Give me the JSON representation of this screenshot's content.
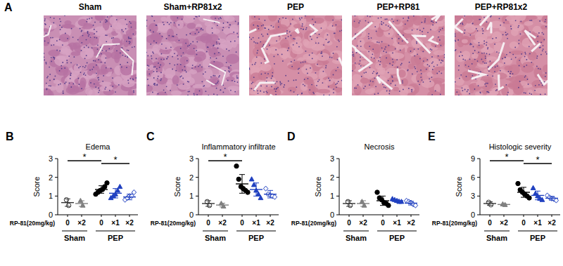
{
  "figure_a": {
    "panel": "A",
    "titles": [
      "Sham",
      "Sham+RP81x2",
      "PEP",
      "PEP+RP81",
      "PEP+RP81x2"
    ]
  },
  "chart_data": [
    {
      "type": "scatter",
      "panel": "B",
      "title": "Edema",
      "y_label": "Score",
      "dose_label": "RP-81(20mg/kg)",
      "categories": [
        "0",
        "×2",
        "0",
        "×1",
        "×2"
      ],
      "group_labels": [
        {
          "label": "Sham",
          "from": 0,
          "to": 1
        },
        {
          "label": "PEP",
          "from": 2,
          "to": 4
        }
      ],
      "ylim": [
        0,
        3
      ],
      "yticks": [
        0,
        1,
        2,
        3
      ],
      "groups": [
        {
          "color": "#333333",
          "marker": "circle-open",
          "values": [
            0.8,
            0.5
          ],
          "mean": 0.65,
          "sd": 0.2
        },
        {
          "color": "#808080",
          "marker": "triangle",
          "values": [
            0.75,
            0.5
          ],
          "mean": 0.6,
          "sd": 0.15
        },
        {
          "color": "#000000",
          "marker": "circle",
          "values": [
            1.1,
            1.2,
            1.3,
            1.35,
            1.5,
            1.7
          ],
          "mean": 1.35,
          "sd": 0.2
        },
        {
          "color": "#2040c0",
          "marker": "triangle",
          "values": [
            0.9,
            1.0,
            1.1,
            1.3,
            1.5
          ],
          "mean": 1.15,
          "sd": 0.25
        },
        {
          "color": "#2040c0",
          "marker": "diamond-open",
          "values": [
            0.8,
            0.9,
            1.0,
            1.0,
            1.2
          ],
          "mean": 0.95,
          "sd": 0.15
        }
      ],
      "significance": [
        {
          "from": 0,
          "to": 2,
          "label": "*"
        },
        {
          "from": 2,
          "to": 4,
          "label": "*"
        }
      ]
    },
    {
      "type": "scatter",
      "panel": "C",
      "title": "Inflammatory infiltrate",
      "y_label": "Score",
      "dose_label": "RP-81(20mg/kg)",
      "categories": [
        "0",
        "×2",
        "0",
        "×1",
        "×2"
      ],
      "group_labels": [
        {
          "label": "Sham",
          "from": 0,
          "to": 1
        },
        {
          "label": "PEP",
          "from": 2,
          "to": 4
        }
      ],
      "ylim": [
        0,
        3
      ],
      "yticks": [
        0,
        1,
        2,
        3
      ],
      "groups": [
        {
          "color": "#333333",
          "marker": "circle-open",
          "values": [
            0.7,
            0.5
          ],
          "mean": 0.6,
          "sd": 0.15
        },
        {
          "color": "#808080",
          "marker": "triangle",
          "values": [
            0.6,
            0.45
          ],
          "mean": 0.52,
          "sd": 0.1
        },
        {
          "color": "#000000",
          "marker": "circle",
          "values": [
            2.6,
            1.9,
            1.5,
            1.4,
            1.3,
            1.2
          ],
          "mean": 1.65,
          "sd": 0.5
        },
        {
          "color": "#2040c0",
          "marker": "triangle",
          "values": [
            1.9,
            1.6,
            1.3,
            1.1,
            0.9
          ],
          "mean": 1.35,
          "sd": 0.35
        },
        {
          "color": "#2040c0",
          "marker": "diamond-open",
          "values": [
            1.4,
            1.1,
            1.05,
            1.0,
            0.95
          ],
          "mean": 1.1,
          "sd": 0.2
        }
      ],
      "significance": [
        {
          "from": 0,
          "to": 2,
          "label": "*"
        }
      ]
    },
    {
      "type": "scatter",
      "panel": "D",
      "title": "Necrosis",
      "y_label": "Score",
      "dose_label": "RP-81(20mg/kg)",
      "categories": [
        "0",
        "×2",
        "0",
        "×1",
        "×2"
      ],
      "group_labels": [
        {
          "label": "Sham",
          "from": 0,
          "to": 1
        },
        {
          "label": "PEP",
          "from": 2,
          "to": 4
        }
      ],
      "ylim": [
        0,
        3
      ],
      "yticks": [
        0,
        1,
        2,
        3
      ],
      "groups": [
        {
          "color": "#333333",
          "marker": "circle-open",
          "values": [
            0.7,
            0.5
          ],
          "mean": 0.6,
          "sd": 0.15
        },
        {
          "color": "#808080",
          "marker": "triangle",
          "values": [
            0.7,
            0.5
          ],
          "mean": 0.6,
          "sd": 0.15
        },
        {
          "color": "#000000",
          "marker": "circle",
          "values": [
            1.2,
            0.9,
            0.8,
            0.65,
            0.6,
            0.5
          ],
          "mean": 0.75,
          "sd": 0.25
        },
        {
          "color": "#2040c0",
          "marker": "triangle",
          "values": [
            0.85,
            0.8,
            0.75,
            0.7,
            0.7
          ],
          "mean": 0.75,
          "sd": 0.07
        },
        {
          "color": "#2040c0",
          "marker": "diamond-open",
          "values": [
            0.75,
            0.7,
            0.65,
            0.55,
            0.5
          ],
          "mean": 0.62,
          "sd": 0.1
        }
      ],
      "significance": []
    },
    {
      "type": "scatter",
      "panel": "E",
      "title": "Histologic severity",
      "y_label": "Score",
      "dose_label": "RP-81(20mg/kg)",
      "categories": [
        "0",
        "×2",
        "0",
        "×1",
        "×2"
      ],
      "group_labels": [
        {
          "label": "Sham",
          "from": 0,
          "to": 1
        },
        {
          "label": "PEP",
          "from": 2,
          "to": 4
        }
      ],
      "ylim": [
        0,
        9
      ],
      "yticks": [
        0,
        3,
        6,
        9
      ],
      "groups": [
        {
          "color": "#333333",
          "marker": "circle-open",
          "values": [
            2.0,
            1.6
          ],
          "mean": 1.8,
          "sd": 0.3
        },
        {
          "color": "#808080",
          "marker": "triangle",
          "values": [
            1.7,
            1.6
          ],
          "mean": 1.65,
          "sd": 0.1
        },
        {
          "color": "#000000",
          "marker": "circle",
          "values": [
            5.0,
            4.0,
            3.6,
            3.3,
            3.0,
            2.7
          ],
          "mean": 3.6,
          "sd": 0.8
        },
        {
          "color": "#2040c0",
          "marker": "triangle",
          "values": [
            4.3,
            3.4,
            3.0,
            2.6,
            2.4
          ],
          "mean": 3.1,
          "sd": 0.7
        },
        {
          "color": "#2040c0",
          "marker": "diamond-open",
          "values": [
            3.1,
            2.8,
            2.6,
            2.5,
            2.3
          ],
          "mean": 2.65,
          "sd": 0.3
        }
      ],
      "significance": [
        {
          "from": 0,
          "to": 2,
          "label": "*"
        },
        {
          "from": 2,
          "to": 4,
          "label": "*"
        }
      ]
    }
  ]
}
